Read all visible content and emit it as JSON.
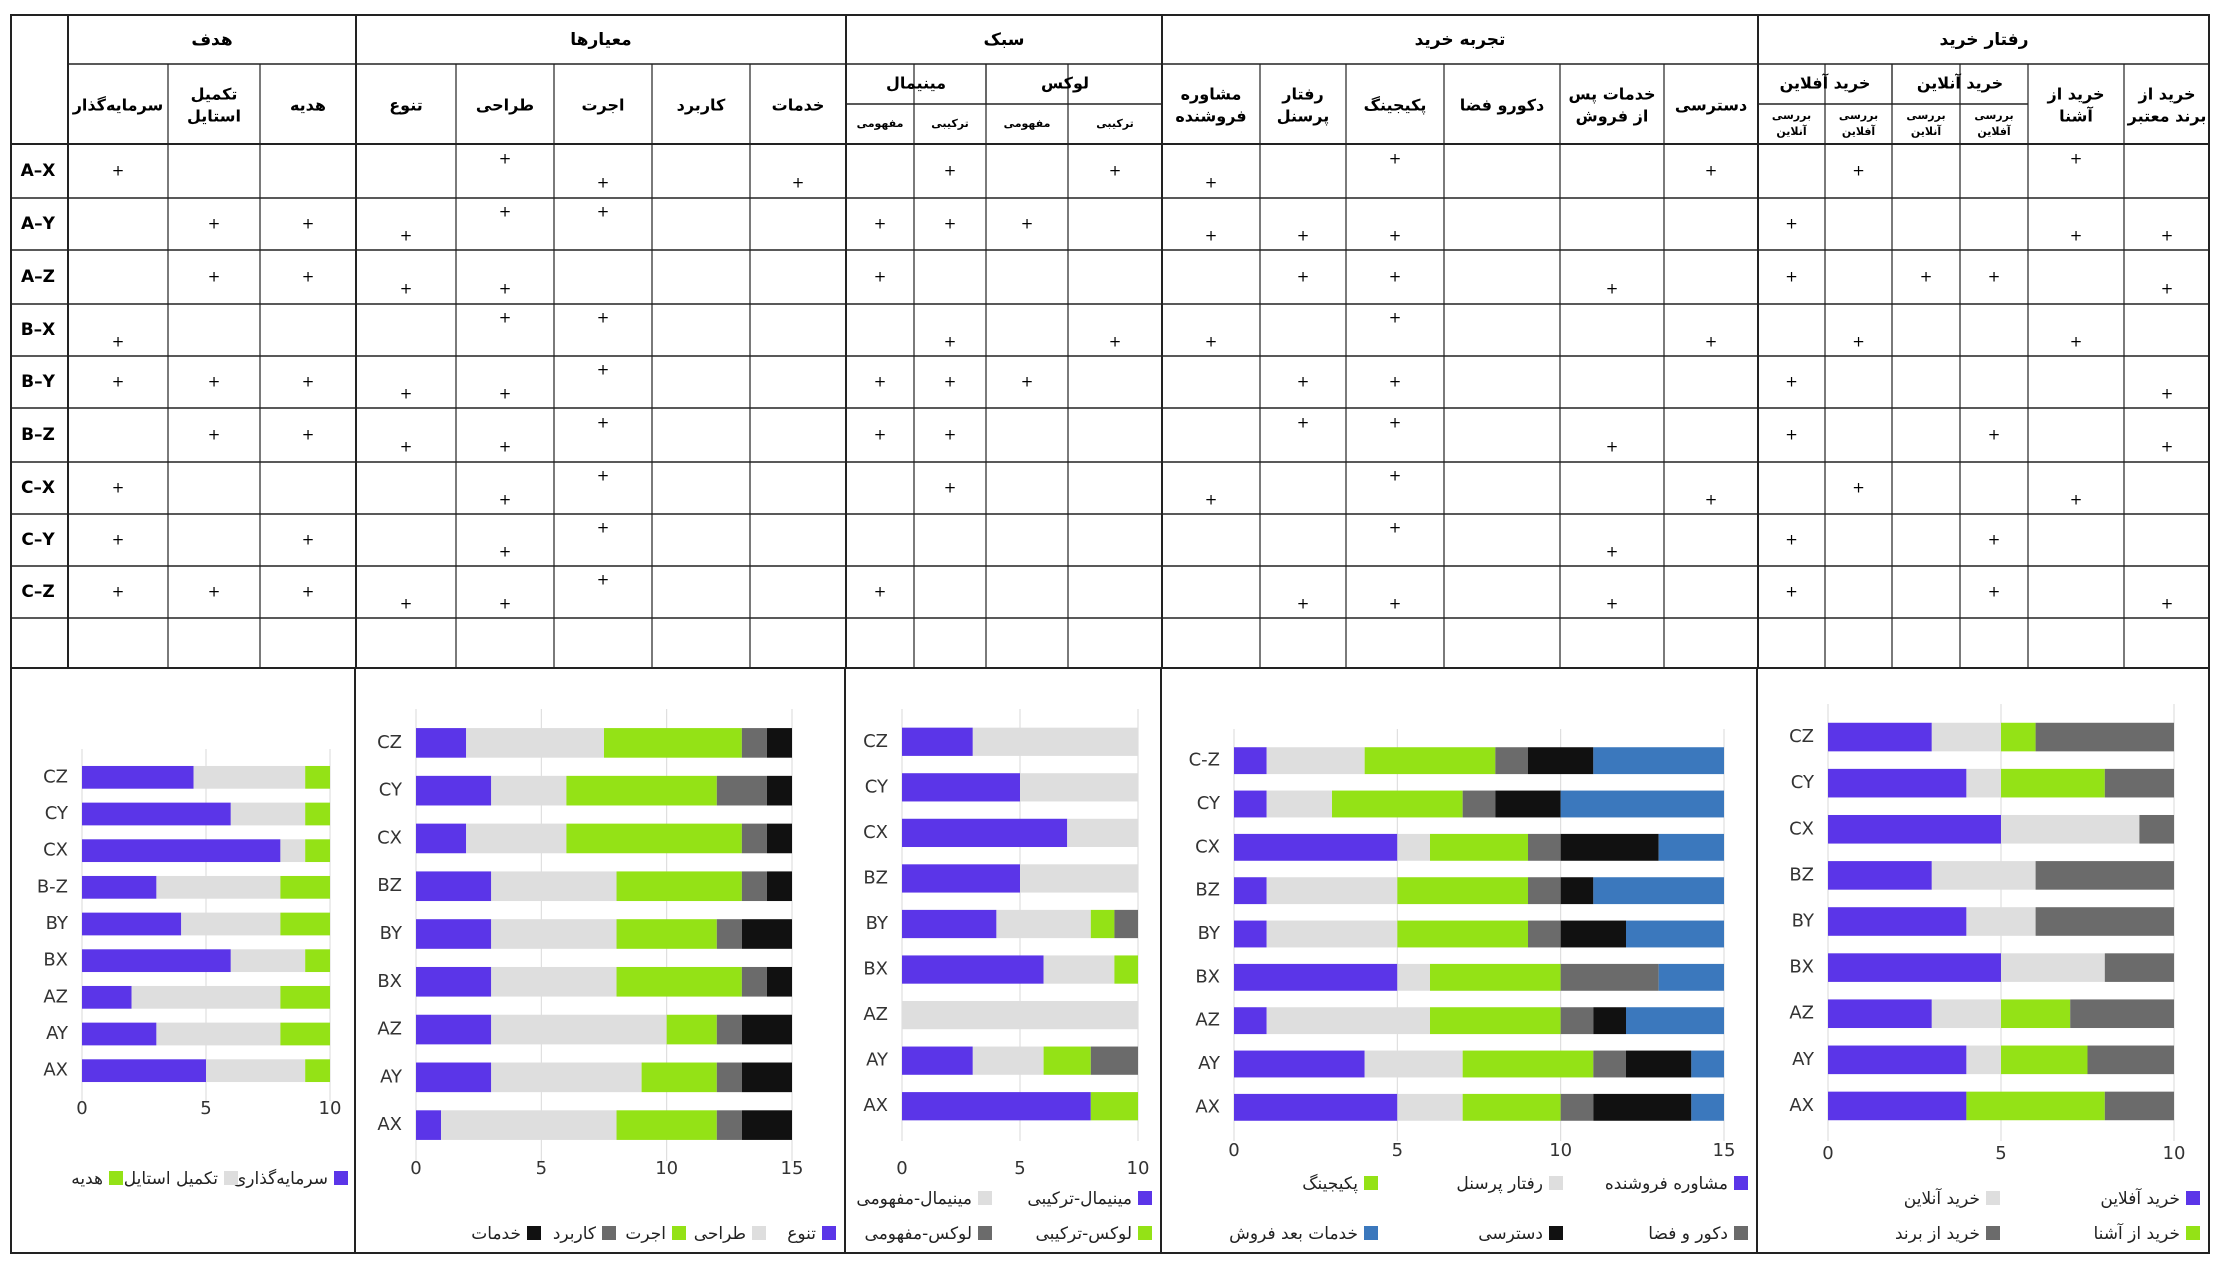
{
  "matrix": {
    "group_headers": [
      "هدف",
      "معیارها",
      "سبک",
      "تجربه خرید",
      "رفتار خرید"
    ],
    "sub_headers": {
      "lux": "لوکس",
      "minimal": "مینیمال",
      "online": "خرید آنلاین",
      "offline": "خرید آفلاین"
    },
    "columns": [
      {
        "key": "c1",
        "label": [
          "سرمایه‌گذار"
        ]
      },
      {
        "key": "c2",
        "label": [
          "تکمیل",
          "استایل"
        ]
      },
      {
        "key": "c3",
        "label": [
          "هدیه"
        ]
      },
      {
        "key": "c4",
        "label": [
          "تنوع"
        ]
      },
      {
        "key": "c5",
        "label": [
          "طراحی"
        ]
      },
      {
        "key": "c6",
        "label": [
          "اجرت"
        ]
      },
      {
        "key": "c7",
        "label": [
          "کاربرد"
        ]
      },
      {
        "key": "c8",
        "label": [
          "خدمات"
        ]
      },
      {
        "key": "c9",
        "label": [
          "مفهومی"
        ]
      },
      {
        "key": "c10",
        "label": [
          "ترکیبی"
        ]
      },
      {
        "key": "c11",
        "label": [
          "مفهومی"
        ]
      },
      {
        "key": "c12",
        "label": [
          "ترکیبی"
        ]
      },
      {
        "key": "c13",
        "label": [
          "مشاوره",
          "فروشنده"
        ]
      },
      {
        "key": "c14",
        "label": [
          "رفتار",
          "پرسنل"
        ]
      },
      {
        "key": "c15",
        "label": [
          "پکیجینگ"
        ]
      },
      {
        "key": "c16",
        "label": [
          "دکورو فضا"
        ]
      },
      {
        "key": "c17",
        "label": [
          "خدمات پس",
          "از فروش"
        ]
      },
      {
        "key": "c18",
        "label": [
          "دسترسی"
        ]
      },
      {
        "key": "c19",
        "label": [
          "بررسی",
          "آنلاین"
        ]
      },
      {
        "key": "c20",
        "label": [
          "بررسی",
          "آفلاین"
        ]
      },
      {
        "key": "c21",
        "label": [
          "بررسی",
          "آنلاین"
        ]
      },
      {
        "key": "c22",
        "label": [
          "بررسی",
          "آفلاین"
        ]
      },
      {
        "key": "c23",
        "label": [
          "خرید از",
          "آشنا"
        ]
      },
      {
        "key": "c24",
        "label": [
          "خرید از",
          "برند معتبر"
        ]
      }
    ],
    "rows": [
      {
        "label": "A–X",
        "marks": [
          [
            1,
            "m"
          ],
          [
            5,
            "t"
          ],
          [
            6,
            "b"
          ],
          [
            8,
            "b"
          ],
          [
            10,
            "m"
          ],
          [
            12,
            "m"
          ],
          [
            13,
            "b"
          ],
          [
            15,
            "t"
          ],
          [
            18,
            "m"
          ],
          [
            20,
            "m"
          ],
          [
            23,
            "t"
          ]
        ]
      },
      {
        "label": "A–Y",
        "marks": [
          [
            2,
            "m"
          ],
          [
            3,
            "m"
          ],
          [
            4,
            "b"
          ],
          [
            5,
            "t"
          ],
          [
            6,
            "t"
          ],
          [
            9,
            "m"
          ],
          [
            10,
            "m"
          ],
          [
            11,
            "m"
          ],
          [
            13,
            "b"
          ],
          [
            14,
            "b"
          ],
          [
            15,
            "b"
          ],
          [
            19,
            "m"
          ],
          [
            23,
            "b"
          ],
          [
            24,
            "b"
          ]
        ]
      },
      {
        "label": "A–Z",
        "marks": [
          [
            2,
            "m"
          ],
          [
            3,
            "m"
          ],
          [
            4,
            "b"
          ],
          [
            5,
            "b"
          ],
          [
            9,
            "m"
          ],
          [
            14,
            "m"
          ],
          [
            15,
            "m"
          ],
          [
            17,
            "b"
          ],
          [
            19,
            "m"
          ],
          [
            21,
            "m"
          ],
          [
            22,
            "m"
          ],
          [
            24,
            "b"
          ]
        ]
      },
      {
        "label": "B–X",
        "marks": [
          [
            1,
            "b"
          ],
          [
            5,
            "t"
          ],
          [
            6,
            "t"
          ],
          [
            10,
            "b"
          ],
          [
            12,
            "b"
          ],
          [
            13,
            "b"
          ],
          [
            15,
            "t"
          ],
          [
            18,
            "b"
          ],
          [
            20,
            "b"
          ],
          [
            23,
            "b"
          ]
        ]
      },
      {
        "label": "B–Y",
        "marks": [
          [
            1,
            "m"
          ],
          [
            2,
            "m"
          ],
          [
            3,
            "m"
          ],
          [
            4,
            "b"
          ],
          [
            5,
            "b"
          ],
          [
            6,
            "t"
          ],
          [
            9,
            "m"
          ],
          [
            10,
            "m"
          ],
          [
            11,
            "m"
          ],
          [
            14,
            "m"
          ],
          [
            15,
            "m"
          ],
          [
            19,
            "m"
          ],
          [
            24,
            "b"
          ]
        ]
      },
      {
        "label": "B–Z",
        "marks": [
          [
            2,
            "m"
          ],
          [
            3,
            "m"
          ],
          [
            4,
            "b"
          ],
          [
            5,
            "b"
          ],
          [
            6,
            "t"
          ],
          [
            9,
            "m"
          ],
          [
            10,
            "m"
          ],
          [
            14,
            "t"
          ],
          [
            15,
            "t"
          ],
          [
            17,
            "b"
          ],
          [
            19,
            "m"
          ],
          [
            22,
            "m"
          ],
          [
            24,
            "b"
          ]
        ]
      },
      {
        "label": "C–X",
        "marks": [
          [
            1,
            "m"
          ],
          [
            5,
            "b"
          ],
          [
            6,
            "t"
          ],
          [
            10,
            "m"
          ],
          [
            13,
            "b"
          ],
          [
            15,
            "t"
          ],
          [
            18,
            "b"
          ],
          [
            20,
            "m"
          ],
          [
            23,
            "b"
          ]
        ]
      },
      {
        "label": "C–Y",
        "marks": [
          [
            1,
            "m"
          ],
          [
            3,
            "m"
          ],
          [
            5,
            "b"
          ],
          [
            6,
            "t"
          ],
          [
            15,
            "t"
          ],
          [
            17,
            "b"
          ],
          [
            19,
            "m"
          ],
          [
            22,
            "m"
          ]
        ]
      },
      {
        "label": "C–Z",
        "marks": [
          [
            1,
            "m"
          ],
          [
            2,
            "m"
          ],
          [
            3,
            "m"
          ],
          [
            4,
            "b"
          ],
          [
            5,
            "b"
          ],
          [
            6,
            "t"
          ],
          [
            9,
            "m"
          ],
          [
            14,
            "b"
          ],
          [
            15,
            "b"
          ],
          [
            17,
            "b"
          ],
          [
            19,
            "m"
          ],
          [
            22,
            "m"
          ],
          [
            24,
            "b"
          ]
        ]
      }
    ],
    "mark_symbol": "+"
  },
  "colors": {
    "purple": "#5b35e8",
    "lightgray": "#dedede",
    "green": "#94e216",
    "darkgray": "#6b6b6b",
    "black": "#111111",
    "blue": "#3b78bd"
  },
  "chart_data": [
    {
      "type": "bar",
      "stacked": true,
      "orientation": "horizontal",
      "categories": [
        "AX",
        "AY",
        "AZ",
        "BX",
        "BY",
        "B-Z",
        "CX",
        "CY",
        "CZ"
      ],
      "xlim": [
        0,
        10
      ],
      "xticks": [
        0,
        5,
        10
      ],
      "grid": true,
      "legend_placement": "bottom",
      "series": [
        {
          "name": "سرمایه‌گذاری",
          "color": "#5b35e8",
          "values": [
            5,
            3,
            2,
            6,
            4,
            3,
            8,
            6,
            4.5
          ]
        },
        {
          "name": "تکمیل استایل",
          "color": "#dedede",
          "values": [
            4,
            5,
            6,
            3,
            4,
            5,
            1,
            3,
            4.5
          ]
        },
        {
          "name": "هدیه",
          "color": "#94e216",
          "values": [
            1,
            2,
            2,
            1,
            2,
            2,
            1,
            1,
            1
          ]
        }
      ]
    },
    {
      "type": "bar",
      "stacked": true,
      "orientation": "horizontal",
      "categories": [
        "AX",
        "AY",
        "AZ",
        "BX",
        "BY",
        "BZ",
        "CX",
        "CY",
        "CZ"
      ],
      "xlim": [
        0,
        15
      ],
      "xticks": [
        0,
        5,
        10,
        15
      ],
      "grid": true,
      "legend_placement": "bottom",
      "series": [
        {
          "name": "تنوع",
          "color": "#5b35e8",
          "values": [
            1,
            3,
            3,
            3,
            3,
            3,
            2,
            3,
            2
          ]
        },
        {
          "name": "طراحی",
          "color": "#dedede",
          "values": [
            7,
            6,
            7,
            5,
            5,
            5,
            4,
            3,
            5.5
          ]
        },
        {
          "name": "اجرت",
          "color": "#94e216",
          "values": [
            4,
            3,
            2,
            5,
            4,
            5,
            7,
            6,
            5.5
          ]
        },
        {
          "name": "کاربرد",
          "color": "#6b6b6b",
          "values": [
            1,
            1,
            1,
            1,
            1,
            1,
            1,
            2,
            1
          ]
        },
        {
          "name": "خدمات",
          "color": "#111111",
          "values": [
            2,
            2,
            2,
            1,
            2,
            1,
            1,
            1,
            1
          ]
        }
      ]
    },
    {
      "type": "bar",
      "stacked": true,
      "orientation": "horizontal",
      "categories": [
        "AX",
        "AY",
        "AZ",
        "BX",
        "BY",
        "BZ",
        "CX",
        "CY",
        "CZ"
      ],
      "xlim": [
        0,
        10
      ],
      "xticks": [
        0,
        5,
        10
      ],
      "grid": true,
      "legend_placement": "bottom",
      "series": [
        {
          "name": "مینیمال-ترکیبی",
          "color": "#5b35e8",
          "values": [
            8,
            3,
            0,
            6,
            4,
            5,
            7,
            5,
            3
          ]
        },
        {
          "name": "مینیمال-مفهومی",
          "color": "#dedede",
          "values": [
            0,
            3,
            10,
            3,
            4,
            5,
            3,
            5,
            7
          ]
        },
        {
          "name": "لوکس-ترکیبی",
          "color": "#94e216",
          "values": [
            2,
            2,
            0,
            1,
            1,
            0,
            0,
            0,
            0
          ]
        },
        {
          "name": "لوکس-مفهومی",
          "color": "#6b6b6b",
          "values": [
            0,
            2,
            0,
            0,
            1,
            0,
            0,
            0,
            0
          ]
        }
      ]
    },
    {
      "type": "bar",
      "stacked": true,
      "orientation": "horizontal",
      "categories": [
        "AX",
        "AY",
        "AZ",
        "BX",
        "BY",
        "BZ",
        "CX",
        "CY",
        "C-Z"
      ],
      "xlim": [
        0,
        15
      ],
      "xticks": [
        0,
        5,
        10,
        15
      ],
      "grid": true,
      "legend_placement": "bottom",
      "series": [
        {
          "name": "مشاوره فروشنده",
          "color": "#5b35e8",
          "values": [
            5,
            4,
            1,
            5,
            1,
            1,
            5,
            1,
            1
          ]
        },
        {
          "name": "رفتار پرسنل",
          "color": "#dedede",
          "values": [
            2,
            3,
            5,
            1,
            4,
            4,
            1,
            2,
            3
          ]
        },
        {
          "name": "پکیجینگ",
          "color": "#94e216",
          "values": [
            3,
            4,
            4,
            4,
            4,
            4,
            3,
            4,
            4
          ]
        },
        {
          "name": "دکور و فضا",
          "color": "#6b6b6b",
          "values": [
            1,
            1,
            1,
            3,
            1,
            1,
            1,
            1,
            1
          ]
        },
        {
          "name": "دسترسی",
          "color": "#111111",
          "values": [
            3,
            2,
            1,
            0,
            2,
            1,
            3,
            2,
            2
          ]
        },
        {
          "name": "خدمات بعد فروش",
          "color": "#3b78bd",
          "values": [
            1,
            1,
            3,
            2,
            3,
            4,
            2,
            5,
            4
          ]
        }
      ]
    },
    {
      "type": "bar",
      "stacked": true,
      "orientation": "horizontal",
      "categories": [
        "AX",
        "AY",
        "AZ",
        "BX",
        "BY",
        "BZ",
        "CX",
        "CY",
        "CZ"
      ],
      "xlim": [
        0,
        10
      ],
      "xticks": [
        0,
        5,
        10
      ],
      "grid": true,
      "legend_placement": "bottom",
      "series": [
        {
          "name": "خرید آفلاین",
          "color": "#5b35e8",
          "values": [
            4,
            4,
            3,
            5,
            4,
            3,
            5,
            4,
            3
          ]
        },
        {
          "name": "خرید آنلاین",
          "color": "#dedede",
          "values": [
            0,
            1,
            2,
            3,
            2,
            3,
            4,
            1,
            2
          ]
        },
        {
          "name": "خرید از آشنا",
          "color": "#94e216",
          "values": [
            4,
            2.5,
            2,
            0,
            0,
            0,
            0,
            3,
            1
          ]
        },
        {
          "name": "خرید از برند",
          "color": "#6b6b6b",
          "values": [
            2,
            2.5,
            3,
            2,
            4,
            4,
            1,
            2,
            4
          ]
        }
      ]
    }
  ]
}
